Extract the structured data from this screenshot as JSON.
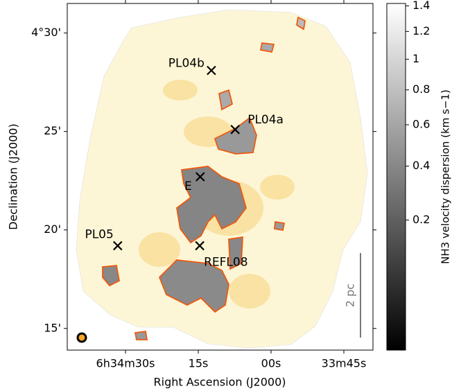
{
  "chart_data": {
    "type": "map",
    "xlabel": "Right Ascension (J2000)",
    "ylabel": "Declination (J2000)",
    "xlim": [
      102,
      39
    ],
    "ylim": [
      13.9,
      31.5
    ],
    "xticks": [
      {
        "value": 90,
        "label": "6h34m30s"
      },
      {
        "value": 75,
        "label": "15s"
      },
      {
        "value": 60,
        "label": "00s"
      },
      {
        "value": 45,
        "label": "33m45s"
      }
    ],
    "yticks": [
      {
        "value": 30,
        "label": "4°30'"
      },
      {
        "value": 25,
        "label": "25'"
      },
      {
        "value": 20,
        "label": "20'"
      },
      {
        "value": 15,
        "label": "15'"
      }
    ],
    "points": {
      "names": [
        "PL04b",
        "PL04a",
        "E",
        "PL05",
        "REFL08"
      ],
      "x": [
        72.3,
        67.4,
        74.6,
        91.6,
        74.7
      ],
      "y": [
        28.1,
        25.1,
        22.7,
        19.2,
        19.2
      ]
    },
    "scale_bar": "2 pc",
    "colorbar": {
      "label": "NH3 velocity dispersion (km s−1)",
      "clim": [
        0,
        1.42
      ],
      "stretch": "sqrt",
      "ticks": [
        0.2,
        0.4,
        0.6,
        0.8,
        1.0,
        1.2,
        1.4
      ]
    }
  }
}
